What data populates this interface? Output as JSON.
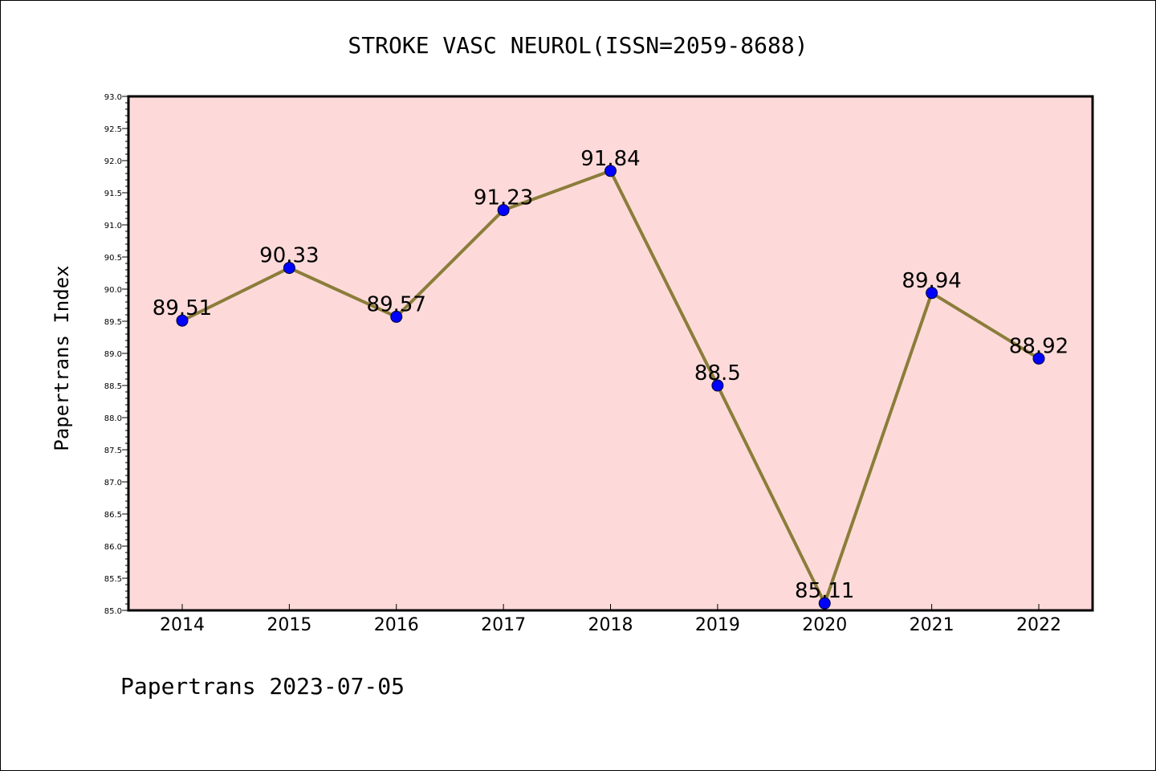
{
  "chart_data": {
    "type": "line",
    "title": "STROKE VASC NEUROL(ISSN=2059-8688)",
    "xlabel": "",
    "ylabel": "Papertrans Index",
    "categories": [
      "2014",
      "2015",
      "2016",
      "2017",
      "2018",
      "2019",
      "2020",
      "2021",
      "2022"
    ],
    "series": [
      {
        "values": [
          89.51,
          90.33,
          89.57,
          91.23,
          91.84,
          88.5,
          85.11,
          89.94,
          88.92
        ],
        "labels": [
          "89.51",
          "90.33",
          "89.57",
          "91.23",
          "91.84",
          "88.5",
          "85.11",
          "89.94",
          "88.92"
        ]
      }
    ],
    "ylim": [
      85.0,
      93.0
    ],
    "yticks": [
      "85.0",
      "85.5",
      "86.0",
      "86.5",
      "87.0",
      "87.5",
      "88.0",
      "88.5",
      "89.0",
      "89.5",
      "90.0",
      "90.5",
      "91.0",
      "91.5",
      "92.0",
      "92.5",
      "93.0"
    ],
    "grid": false,
    "legend": "none",
    "footer": "Papertrans 2023-07-05",
    "colors": {
      "plot_background": "#fddad9",
      "line": "#8b7d3a",
      "marker": "#0000ff",
      "axis": "#000000"
    }
  }
}
